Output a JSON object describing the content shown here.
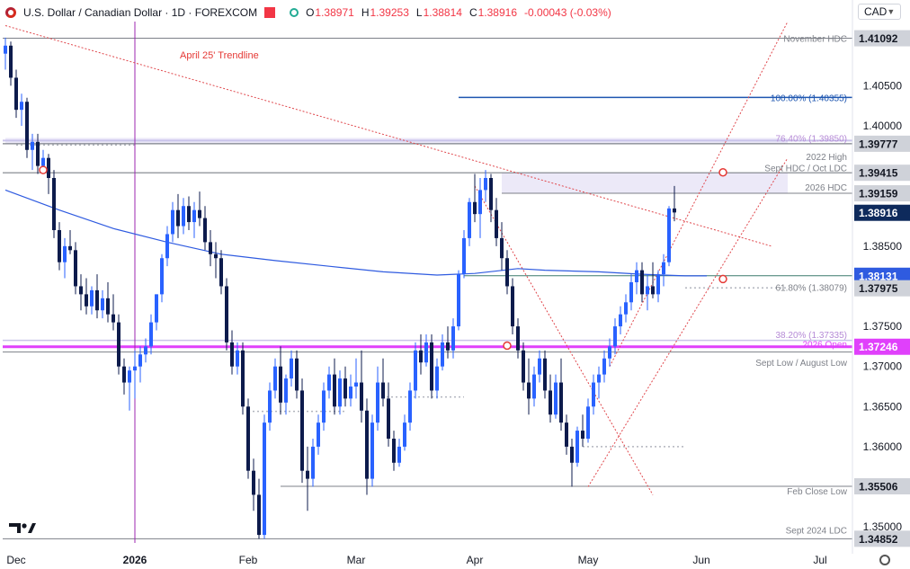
{
  "header": {
    "title": "U.S. Dollar / Canadian Dollar · 1D · FOREXCOM",
    "open_label": "O",
    "open": "1.38971",
    "high_label": "H",
    "high": "1.39253",
    "low_label": "L",
    "low": "1.38814",
    "close_label": "C",
    "close": "1.38916",
    "change": "-0.00043 (-0.03%)"
  },
  "currency": "CAD",
  "colors": {
    "up": "#2962ff",
    "down": "#0d1b4c",
    "ma": "#2f5be0",
    "trend": "#e0484d",
    "magenta": "#e040fb",
    "lavender": "#c9c3ea",
    "zone": "rgba(149,135,214,0.18)",
    "level_gray": "#7d8088",
    "fib_blue": "#1e56b0",
    "fib_lavender": "#b58ad6"
  },
  "chart_data": {
    "type": "candlestick",
    "title": "U.S. Dollar / Canadian Dollar · 1D · FOREXCOM",
    "ylim": [
      1.348,
      1.413
    ],
    "x_labels": [
      {
        "label": "Dec",
        "index": 2
      },
      {
        "label": "2026",
        "index": 24
      },
      {
        "label": "Feb",
        "index": 45
      },
      {
        "label": "Mar",
        "index": 65
      },
      {
        "label": "Apr",
        "index": 87
      },
      {
        "label": "May",
        "index": 108
      },
      {
        "label": "Jun",
        "index": 129
      },
      {
        "label": "Jul",
        "index": 151
      }
    ],
    "y_ticks": [
      "1.35000",
      "1.35500",
      "1.36000",
      "1.36500",
      "1.37000",
      "1.37500",
      "1.38000",
      "1.38500",
      "1.39000",
      "1.39500",
      "1.40000",
      "1.40500",
      "1.41000"
    ],
    "price_tags": [
      {
        "label": "1.41092",
        "value": 1.41092,
        "style": "gray"
      },
      {
        "label": "1.39777",
        "value": 1.39777,
        "style": "gray"
      },
      {
        "label": "1.39415",
        "value": 1.39415,
        "style": "gray"
      },
      {
        "label": "1.39159",
        "value": 1.39159,
        "style": "gray"
      },
      {
        "label": "1.38916",
        "value": 1.38916,
        "style": "navy"
      },
      {
        "label": "1.38131",
        "value": 1.38131,
        "style": "blue"
      },
      {
        "label": "1.37975",
        "value": 1.37975,
        "style": "gray"
      },
      {
        "label": "1.37246",
        "value": 1.37246,
        "style": "magenta"
      },
      {
        "label": "1.35506",
        "value": 1.35506,
        "style": "gray"
      },
      {
        "label": "1.34852",
        "value": 1.34852,
        "style": "gray"
      }
    ],
    "annotations": [
      {
        "text": "November HDC",
        "value": 1.41092,
        "color": "#7d8088"
      },
      {
        "text": "100.00% (1.40355)",
        "value": 1.40355,
        "color": "#1e56b0"
      },
      {
        "text": "76.40% (1.39850)",
        "value": 1.3985,
        "color": "#b58ad6"
      },
      {
        "text": "2022 High",
        "value": 1.3962,
        "color": "#7d8088"
      },
      {
        "text": "Sept HDC / Oct LDC",
        "value": 1.3948,
        "color": "#7d8088"
      },
      {
        "text": "2026 HDC",
        "value": 1.3924,
        "color": "#7d8088"
      },
      {
        "text": "61.80% (1.38079)",
        "value": 1.3799,
        "color": "#7d8088"
      },
      {
        "text": "38.20% (1.37335)",
        "value": 1.374,
        "color": "#b58ad6"
      },
      {
        "text": "2026 Open",
        "value": 1.3728,
        "color": "#e040fb"
      },
      {
        "text": "Sept Low / August Low",
        "value": 1.3705,
        "color": "#7d8088"
      },
      {
        "text": "Feb Close Low",
        "value": 1.3545,
        "color": "#7d8088"
      },
      {
        "text": "Sept 2024 LDC",
        "value": 1.3496,
        "color": "#7d8088"
      }
    ],
    "trendline_label": "April 25' Trendline",
    "levels": {
      "november_hdc": 1.41092,
      "fib100": 1.40355,
      "fib764": 1.3985,
      "high_2022": 1.39777,
      "sept_hdc": 1.39415,
      "hdc_2026": 1.39159,
      "fib618": 1.38079,
      "ma_level": 1.38131,
      "low_line": 1.37975,
      "fib382": 1.37335,
      "open_2026": 1.37246,
      "sept_low": 1.3718,
      "feb_close_low": 1.35506,
      "sept2024_ldc": 1.34852
    },
    "candles": [
      [
        1.409,
        1.411,
        1.407,
        1.41
      ],
      [
        1.41,
        1.4105,
        1.405,
        1.406
      ],
      [
        1.406,
        1.407,
        1.401,
        1.402
      ],
      [
        1.402,
        1.404,
        1.4,
        1.403
      ],
      [
        1.403,
        1.4035,
        1.396,
        1.397
      ],
      [
        1.397,
        1.399,
        1.3945,
        1.398
      ],
      [
        1.398,
        1.399,
        1.394,
        1.395
      ],
      [
        1.395,
        1.397,
        1.394,
        1.396
      ],
      [
        1.396,
        1.3965,
        1.3915,
        1.3935
      ],
      [
        1.3935,
        1.3945,
        1.386,
        1.387
      ],
      [
        1.387,
        1.388,
        1.382,
        1.383
      ],
      [
        1.383,
        1.386,
        1.381,
        1.385
      ],
      [
        1.385,
        1.387,
        1.384,
        1.3845
      ],
      [
        1.3845,
        1.3855,
        1.379,
        1.38
      ],
      [
        1.38,
        1.3815,
        1.377,
        1.379
      ],
      [
        1.379,
        1.381,
        1.3765,
        1.3775
      ],
      [
        1.3775,
        1.38,
        1.3765,
        1.3795
      ],
      [
        1.3795,
        1.3815,
        1.376,
        1.377
      ],
      [
        1.377,
        1.3795,
        1.376,
        1.3785
      ],
      [
        1.3785,
        1.3805,
        1.3755,
        1.3765
      ],
      [
        1.3765,
        1.379,
        1.3745,
        1.3755
      ],
      [
        1.3755,
        1.3765,
        1.369,
        1.37
      ],
      [
        1.37,
        1.371,
        1.3665,
        1.368
      ],
      [
        1.368,
        1.37,
        1.3645,
        1.3695
      ],
      [
        1.3695,
        1.372,
        1.366,
        1.37
      ],
      [
        1.37,
        1.3725,
        1.368,
        1.3715
      ],
      [
        1.3715,
        1.3735,
        1.3705,
        1.3725
      ],
      [
        1.3725,
        1.3765,
        1.3715,
        1.3755
      ],
      [
        1.3755,
        1.379,
        1.3745,
        1.379
      ],
      [
        1.379,
        1.384,
        1.378,
        1.3835
      ],
      [
        1.3835,
        1.3875,
        1.3825,
        1.3865
      ],
      [
        1.3865,
        1.3905,
        1.3855,
        1.3895
      ],
      [
        1.3895,
        1.3915,
        1.386,
        1.3875
      ],
      [
        1.3875,
        1.391,
        1.3865,
        1.39
      ],
      [
        1.39,
        1.3912,
        1.387,
        1.388
      ],
      [
        1.388,
        1.3905,
        1.386,
        1.3895
      ],
      [
        1.3895,
        1.3918,
        1.3875,
        1.3885
      ],
      [
        1.3885,
        1.39,
        1.3845,
        1.3855
      ],
      [
        1.3855,
        1.387,
        1.3825,
        1.384
      ],
      [
        1.384,
        1.3855,
        1.381,
        1.3835
      ],
      [
        1.3835,
        1.3845,
        1.379,
        1.38
      ],
      [
        1.38,
        1.381,
        1.372,
        1.373
      ],
      [
        1.373,
        1.3745,
        1.369,
        1.37
      ],
      [
        1.37,
        1.373,
        1.369,
        1.372
      ],
      [
        1.372,
        1.373,
        1.364,
        1.365
      ],
      [
        1.365,
        1.366,
        1.356,
        1.357
      ],
      [
        1.357,
        1.3585,
        1.352,
        1.354
      ],
      [
        1.354,
        1.356,
        1.3485,
        1.349
      ],
      [
        1.349,
        1.364,
        1.3485,
        1.363
      ],
      [
        1.363,
        1.368,
        1.362,
        1.367
      ],
      [
        1.367,
        1.371,
        1.366,
        1.37
      ],
      [
        1.37,
        1.3725,
        1.364,
        1.3655
      ],
      [
        1.3655,
        1.369,
        1.364,
        1.3685
      ],
      [
        1.3685,
        1.372,
        1.3675,
        1.371
      ],
      [
        1.371,
        1.372,
        1.366,
        1.367
      ],
      [
        1.367,
        1.3685,
        1.3555,
        1.357
      ],
      [
        1.357,
        1.36,
        1.352,
        1.356
      ],
      [
        1.356,
        1.361,
        1.355,
        1.36
      ],
      [
        1.36,
        1.364,
        1.359,
        1.363
      ],
      [
        1.363,
        1.368,
        1.362,
        1.367
      ],
      [
        1.367,
        1.37,
        1.366,
        1.369
      ],
      [
        1.369,
        1.371,
        1.364,
        1.365
      ],
      [
        1.365,
        1.3695,
        1.364,
        1.3685
      ],
      [
        1.3685,
        1.37,
        1.365,
        1.366
      ],
      [
        1.366,
        1.369,
        1.365,
        1.3675
      ],
      [
        1.3675,
        1.371,
        1.366,
        1.368
      ],
      [
        1.368,
        1.372,
        1.363,
        1.3645
      ],
      [
        1.3645,
        1.366,
        1.354,
        1.356
      ],
      [
        1.356,
        1.364,
        1.355,
        1.363
      ],
      [
        1.363,
        1.37,
        1.362,
        1.368
      ],
      [
        1.368,
        1.371,
        1.365,
        1.366
      ],
      [
        1.366,
        1.368,
        1.36,
        1.361
      ],
      [
        1.361,
        1.362,
        1.357,
        1.358
      ],
      [
        1.358,
        1.361,
        1.3575,
        1.36
      ],
      [
        1.36,
        1.364,
        1.3595,
        1.363
      ],
      [
        1.363,
        1.368,
        1.362,
        1.367
      ],
      [
        1.367,
        1.373,
        1.366,
        1.372
      ],
      [
        1.372,
        1.374,
        1.369,
        1.3705
      ],
      [
        1.3705,
        1.374,
        1.37,
        1.373
      ],
      [
        1.373,
        1.374,
        1.366,
        1.367
      ],
      [
        1.367,
        1.371,
        1.366,
        1.37
      ],
      [
        1.37,
        1.374,
        1.3695,
        1.373
      ],
      [
        1.373,
        1.375,
        1.371,
        1.372
      ],
      [
        1.372,
        1.376,
        1.371,
        1.375
      ],
      [
        1.375,
        1.382,
        1.3745,
        1.3815
      ],
      [
        1.3815,
        1.387,
        1.381,
        1.386
      ],
      [
        1.386,
        1.391,
        1.385,
        1.3905
      ],
      [
        1.3905,
        1.394,
        1.388,
        1.389
      ],
      [
        1.389,
        1.3935,
        1.386,
        1.392
      ],
      [
        1.392,
        1.3945,
        1.3905,
        1.3935
      ],
      [
        1.3935,
        1.394,
        1.388,
        1.3895
      ],
      [
        1.3895,
        1.391,
        1.385,
        1.386
      ],
      [
        1.386,
        1.388,
        1.382,
        1.3835
      ],
      [
        1.3835,
        1.3845,
        1.379,
        1.38
      ],
      [
        1.38,
        1.381,
        1.374,
        1.375
      ],
      [
        1.375,
        1.376,
        1.371,
        1.372
      ],
      [
        1.372,
        1.373,
        1.367,
        1.368
      ],
      [
        1.368,
        1.371,
        1.364,
        1.366
      ],
      [
        1.366,
        1.37,
        1.365,
        1.369
      ],
      [
        1.369,
        1.372,
        1.368,
        1.371
      ],
      [
        1.371,
        1.372,
        1.366,
        1.367
      ],
      [
        1.367,
        1.369,
        1.363,
        1.364
      ],
      [
        1.364,
        1.369,
        1.3635,
        1.368
      ],
      [
        1.368,
        1.371,
        1.362,
        1.363
      ],
      [
        1.363,
        1.364,
        1.359,
        1.36
      ],
      [
        1.36,
        1.361,
        1.355,
        1.358
      ],
      [
        1.358,
        1.3625,
        1.3575,
        1.362
      ],
      [
        1.362,
        1.364,
        1.36,
        1.361
      ],
      [
        1.361,
        1.366,
        1.3605,
        1.365
      ],
      [
        1.365,
        1.369,
        1.364,
        1.368
      ],
      [
        1.368,
        1.37,
        1.366,
        1.369
      ],
      [
        1.369,
        1.372,
        1.368,
        1.371
      ],
      [
        1.371,
        1.3735,
        1.37,
        1.3725
      ],
      [
        1.3725,
        1.376,
        1.3715,
        1.375
      ],
      [
        1.375,
        1.3775,
        1.374,
        1.3765
      ],
      [
        1.3765,
        1.379,
        1.3755,
        1.378
      ],
      [
        1.378,
        1.3815,
        1.377,
        1.3805
      ],
      [
        1.3805,
        1.383,
        1.379,
        1.382
      ],
      [
        1.382,
        1.383,
        1.378,
        1.379
      ],
      [
        1.379,
        1.3815,
        1.377,
        1.38
      ],
      [
        1.38,
        1.383,
        1.3785,
        1.379
      ],
      [
        1.379,
        1.382,
        1.378,
        1.3815
      ],
      [
        1.3815,
        1.384,
        1.38,
        1.383
      ],
      [
        1.383,
        1.39,
        1.3825,
        1.3897
      ],
      [
        1.3897,
        1.3925,
        1.3881,
        1.3892
      ]
    ],
    "ma": [
      [
        0,
        1.392
      ],
      [
        10,
        1.3895
      ],
      [
        20,
        1.3872
      ],
      [
        30,
        1.3855
      ],
      [
        40,
        1.384
      ],
      [
        50,
        1.3832
      ],
      [
        60,
        1.3825
      ],
      [
        70,
        1.3818
      ],
      [
        80,
        1.3814
      ],
      [
        87,
        1.3816
      ],
      [
        95,
        1.3822
      ],
      [
        100,
        1.382
      ],
      [
        110,
        1.3818
      ],
      [
        118,
        1.3815
      ],
      [
        126,
        1.3813
      ],
      [
        130,
        1.3813
      ]
    ],
    "trendline": [
      [
        0,
        1.4125
      ],
      [
        142,
        1.385
      ]
    ],
    "channel": {
      "left_upper": [
        [
          87,
          1.3925
        ],
        [
          120,
          1.354
        ]
      ],
      "right_lower": [
        [
          108,
          1.355
        ],
        [
          145,
          1.396
        ]
      ],
      "right_upper": [
        [
          112,
          1.37
        ],
        [
          145,
          1.413
        ]
      ]
    },
    "zones": [
      {
        "from": 1.39159,
        "to": 1.39415,
        "x_from": 92,
        "x_to": 145
      },
      {
        "from": 1.39777,
        "to": 1.3985,
        "x_from": 0,
        "x_to": 145
      }
    ],
    "markers": [
      {
        "x": 7,
        "y": 1.3945
      },
      {
        "x": 133,
        "y": 1.3942
      },
      {
        "x": 133,
        "y": 1.3809
      },
      {
        "x": 93,
        "y": 1.3726
      }
    ],
    "dotted_levels": [
      {
        "value": 1.3976,
        "x_from": 2,
        "x_to": 24
      },
      {
        "value": 1.3662,
        "x_from": 69,
        "x_to": 85
      },
      {
        "value": 1.3644,
        "x_from": 45,
        "x_to": 63
      },
      {
        "value": 1.36,
        "x_from": 107,
        "x_to": 126
      },
      {
        "value": 1.3798,
        "x_from": 126,
        "x_to": 145
      }
    ],
    "vertical_line_index": 24
  }
}
